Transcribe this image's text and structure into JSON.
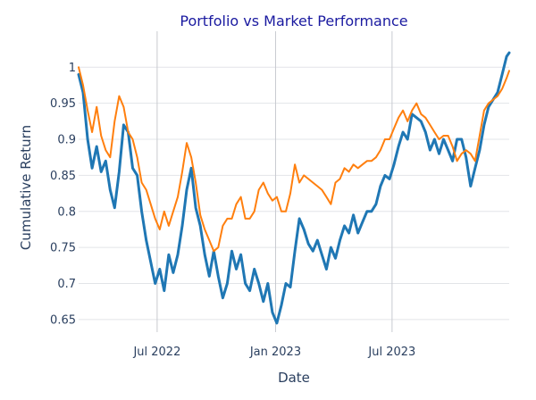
{
  "title": "Portfolio vs Market Performance",
  "colors": {
    "title": "#1a1aa0",
    "series1": "#1f77b4",
    "series2": "#ff7f0e",
    "grid": "#e2e4e8",
    "vgrid": "#c8cad0",
    "text": "#2a3f5f"
  },
  "chart_data": {
    "type": "line",
    "title": "Portfolio vs Market Performance",
    "xlabel": "Date",
    "ylabel": "Cumulative Return",
    "xlim": [
      "2022-03-01",
      "2023-12-30"
    ],
    "ylim": [
      0.635,
      1.04
    ],
    "x_ticks": [
      {
        "date": "2022-07-01",
        "label": "Jul 2022"
      },
      {
        "date": "2023-01-01",
        "label": "Jan 2023"
      },
      {
        "date": "2023-07-01",
        "label": "Jul 2023"
      }
    ],
    "y_ticks": [
      {
        "value": 0.65,
        "label": "0.65"
      },
      {
        "value": 0.7,
        "label": "0.7"
      },
      {
        "value": 0.75,
        "label": "0.75"
      },
      {
        "value": 0.8,
        "label": "0.8"
      },
      {
        "value": 0.85,
        "label": "0.85"
      },
      {
        "value": 0.9,
        "label": "0.9"
      },
      {
        "value": 0.95,
        "label": "0.95"
      },
      {
        "value": 1,
        "label": "1"
      }
    ],
    "grid": true,
    "legend": "none",
    "series": [
      {
        "color": "#1f77b4",
        "x": [
          "2022-03-01",
          "2022-03-08",
          "2022-03-15",
          "2022-03-22",
          "2022-03-29",
          "2022-04-05",
          "2022-04-12",
          "2022-04-19",
          "2022-04-26",
          "2022-05-03",
          "2022-05-10",
          "2022-05-17",
          "2022-05-24",
          "2022-05-31",
          "2022-06-07",
          "2022-06-14",
          "2022-06-21",
          "2022-06-28",
          "2022-07-05",
          "2022-07-12",
          "2022-07-19",
          "2022-07-26",
          "2022-08-02",
          "2022-08-09",
          "2022-08-16",
          "2022-08-23",
          "2022-08-30",
          "2022-09-06",
          "2022-09-13",
          "2022-09-20",
          "2022-09-27",
          "2022-10-04",
          "2022-10-11",
          "2022-10-18",
          "2022-10-25",
          "2022-11-01",
          "2022-11-08",
          "2022-11-15",
          "2022-11-22",
          "2022-11-29",
          "2022-12-06",
          "2022-12-13",
          "2022-12-20",
          "2022-12-27",
          "2023-01-03",
          "2023-01-10",
          "2023-01-17",
          "2023-01-24",
          "2023-01-31",
          "2023-02-07",
          "2023-02-14",
          "2023-02-21",
          "2023-02-28",
          "2023-03-07",
          "2023-03-14",
          "2023-03-21",
          "2023-03-28",
          "2023-04-04",
          "2023-04-11",
          "2023-04-18",
          "2023-04-25",
          "2023-05-02",
          "2023-05-09",
          "2023-05-16",
          "2023-05-23",
          "2023-05-30",
          "2023-06-06",
          "2023-06-13",
          "2023-06-20",
          "2023-06-27",
          "2023-07-04",
          "2023-07-11",
          "2023-07-18",
          "2023-07-25",
          "2023-08-01",
          "2023-08-08",
          "2023-08-15",
          "2023-08-22",
          "2023-08-29",
          "2023-09-05",
          "2023-09-12",
          "2023-09-19",
          "2023-09-26",
          "2023-10-03",
          "2023-10-10",
          "2023-10-17",
          "2023-10-24",
          "2023-10-31",
          "2023-11-07",
          "2023-11-14",
          "2023-11-21",
          "2023-11-28",
          "2023-12-05",
          "2023-12-12",
          "2023-12-19",
          "2023-12-26",
          "2023-12-30"
        ],
        "y": [
          0.99,
          0.965,
          0.9,
          0.86,
          0.89,
          0.855,
          0.87,
          0.83,
          0.805,
          0.855,
          0.92,
          0.91,
          0.86,
          0.85,
          0.8,
          0.76,
          0.73,
          0.7,
          0.72,
          0.69,
          0.74,
          0.715,
          0.74,
          0.78,
          0.83,
          0.86,
          0.805,
          0.78,
          0.74,
          0.71,
          0.745,
          0.71,
          0.68,
          0.7,
          0.745,
          0.72,
          0.74,
          0.7,
          0.69,
          0.72,
          0.7,
          0.675,
          0.7,
          0.66,
          0.645,
          0.67,
          0.7,
          0.695,
          0.745,
          0.79,
          0.775,
          0.755,
          0.745,
          0.76,
          0.74,
          0.72,
          0.75,
          0.735,
          0.76,
          0.78,
          0.77,
          0.795,
          0.77,
          0.785,
          0.8,
          0.8,
          0.81,
          0.835,
          0.85,
          0.845,
          0.865,
          0.89,
          0.91,
          0.9,
          0.935,
          0.93,
          0.925,
          0.91,
          0.885,
          0.9,
          0.88,
          0.9,
          0.885,
          0.87,
          0.9,
          0.9,
          0.875,
          0.835,
          0.86,
          0.885,
          0.92,
          0.945,
          0.955,
          0.965,
          0.99,
          1.015,
          1.02
        ]
      },
      {
        "color": "#ff7f0e",
        "x": [
          "2022-03-01",
          "2022-03-08",
          "2022-03-15",
          "2022-03-22",
          "2022-03-29",
          "2022-04-05",
          "2022-04-12",
          "2022-04-19",
          "2022-04-26",
          "2022-05-03",
          "2022-05-10",
          "2022-05-17",
          "2022-05-24",
          "2022-05-31",
          "2022-06-07",
          "2022-06-14",
          "2022-06-21",
          "2022-06-28",
          "2022-07-05",
          "2022-07-12",
          "2022-07-19",
          "2022-07-26",
          "2022-08-02",
          "2022-08-09",
          "2022-08-16",
          "2022-08-23",
          "2022-08-30",
          "2022-09-06",
          "2022-09-13",
          "2022-09-20",
          "2022-09-27",
          "2022-10-04",
          "2022-10-11",
          "2022-10-18",
          "2022-10-25",
          "2022-11-01",
          "2022-11-08",
          "2022-11-15",
          "2022-11-22",
          "2022-11-29",
          "2022-12-06",
          "2022-12-13",
          "2022-12-20",
          "2022-12-27",
          "2023-01-03",
          "2023-01-10",
          "2023-01-17",
          "2023-01-24",
          "2023-01-31",
          "2023-02-07",
          "2023-02-14",
          "2023-02-21",
          "2023-02-28",
          "2023-03-07",
          "2023-03-14",
          "2023-03-21",
          "2023-03-28",
          "2023-04-04",
          "2023-04-11",
          "2023-04-18",
          "2023-04-25",
          "2023-05-02",
          "2023-05-09",
          "2023-05-16",
          "2023-05-23",
          "2023-05-30",
          "2023-06-06",
          "2023-06-13",
          "2023-06-20",
          "2023-06-27",
          "2023-07-04",
          "2023-07-11",
          "2023-07-18",
          "2023-07-25",
          "2023-08-01",
          "2023-08-08",
          "2023-08-15",
          "2023-08-22",
          "2023-08-29",
          "2023-09-05",
          "2023-09-12",
          "2023-09-19",
          "2023-09-26",
          "2023-10-03",
          "2023-10-10",
          "2023-10-17",
          "2023-10-24",
          "2023-10-31",
          "2023-11-07",
          "2023-11-14",
          "2023-11-21",
          "2023-11-28",
          "2023-12-05",
          "2023-12-12",
          "2023-12-19",
          "2023-12-26",
          "2023-12-30"
        ],
        "y": [
          1.0,
          0.975,
          0.94,
          0.91,
          0.945,
          0.905,
          0.885,
          0.875,
          0.925,
          0.96,
          0.945,
          0.91,
          0.9,
          0.875,
          0.84,
          0.83,
          0.81,
          0.79,
          0.775,
          0.8,
          0.78,
          0.8,
          0.82,
          0.855,
          0.895,
          0.875,
          0.84,
          0.795,
          0.775,
          0.76,
          0.745,
          0.75,
          0.78,
          0.79,
          0.79,
          0.81,
          0.82,
          0.79,
          0.79,
          0.8,
          0.83,
          0.84,
          0.825,
          0.815,
          0.82,
          0.8,
          0.8,
          0.825,
          0.865,
          0.84,
          0.85,
          0.845,
          0.84,
          0.835,
          0.83,
          0.82,
          0.81,
          0.84,
          0.845,
          0.86,
          0.855,
          0.865,
          0.86,
          0.865,
          0.87,
          0.87,
          0.875,
          0.885,
          0.9,
          0.9,
          0.915,
          0.93,
          0.94,
          0.925,
          0.94,
          0.95,
          0.935,
          0.93,
          0.92,
          0.91,
          0.9,
          0.905,
          0.905,
          0.89,
          0.87,
          0.88,
          0.885,
          0.88,
          0.87,
          0.905,
          0.94,
          0.95,
          0.955,
          0.96,
          0.97,
          0.985,
          0.995
        ]
      }
    ]
  }
}
